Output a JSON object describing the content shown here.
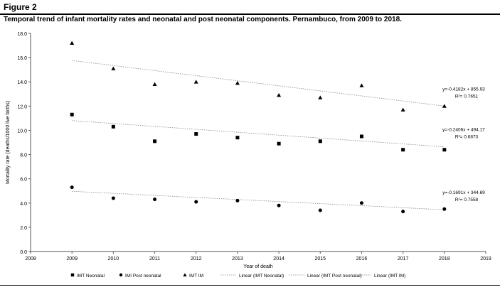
{
  "figure": {
    "label": "Figure 2",
    "title": "Temporal trend of infant mortality rates and neonatal and post neonatal components. Pernambuco, from 2009 to 2018."
  },
  "chart_data": {
    "type": "scatter",
    "xlabel": "Year of death",
    "ylabel": "Mortality rate (deaths/1000 live births)",
    "xlim": [
      2008,
      2019
    ],
    "ylim": [
      0,
      18
    ],
    "x_ticks": [
      "2008",
      "2009",
      "2010",
      "2011",
      "2012",
      "2013",
      "2014",
      "2015",
      "2016",
      "2017",
      "2018",
      "2019"
    ],
    "y_ticks": [
      "0.0",
      "2.0",
      "4.0",
      "6.0",
      "8.0",
      "10.0",
      "12.0",
      "14.0",
      "16.0",
      "18.0"
    ],
    "grid": false,
    "legend_position": "bottom",
    "x": [
      2009,
      2010,
      2011,
      2012,
      2013,
      2014,
      2015,
      2016,
      2017,
      2018
    ],
    "series": [
      {
        "name": "IMT Neonatal",
        "marker": "square",
        "values": [
          11.3,
          10.3,
          9.1,
          9.7,
          9.4,
          8.9,
          9.1,
          9.5,
          8.4,
          8.4
        ],
        "trend": {
          "name": "Linear (IMT Neonatal)",
          "slope": -0.2406,
          "intercept": 494.17,
          "equation": "y=-0.2406x + 494.17",
          "r2": "R²= 0.6873"
        }
      },
      {
        "name": "IMI Post neonatal",
        "marker": "circle",
        "values": [
          5.3,
          4.4,
          4.3,
          4.1,
          4.2,
          3.8,
          3.4,
          4.0,
          3.3,
          3.5
        ],
        "trend": {
          "name": "Linear (IMT Post neonatal)",
          "slope": -0.1691,
          "intercept": 344.69,
          "equation": "y=-0.1691x + 344.69",
          "r2": "R²= 0.7558"
        }
      },
      {
        "name": "IMT IM",
        "marker": "triangle",
        "values": [
          17.2,
          15.1,
          13.8,
          14.0,
          13.9,
          12.9,
          12.7,
          13.7,
          11.7,
          12.0
        ],
        "trend": {
          "name": "Linear (IMT IM)",
          "slope": -0.4182,
          "intercept": 855.93,
          "equation": "y=-0.4182x + 855.93",
          "r2": "R²= 0.7651"
        }
      }
    ],
    "colors": {
      "markers": "#000000",
      "trendline": "#888888",
      "axis": "#555555"
    }
  }
}
